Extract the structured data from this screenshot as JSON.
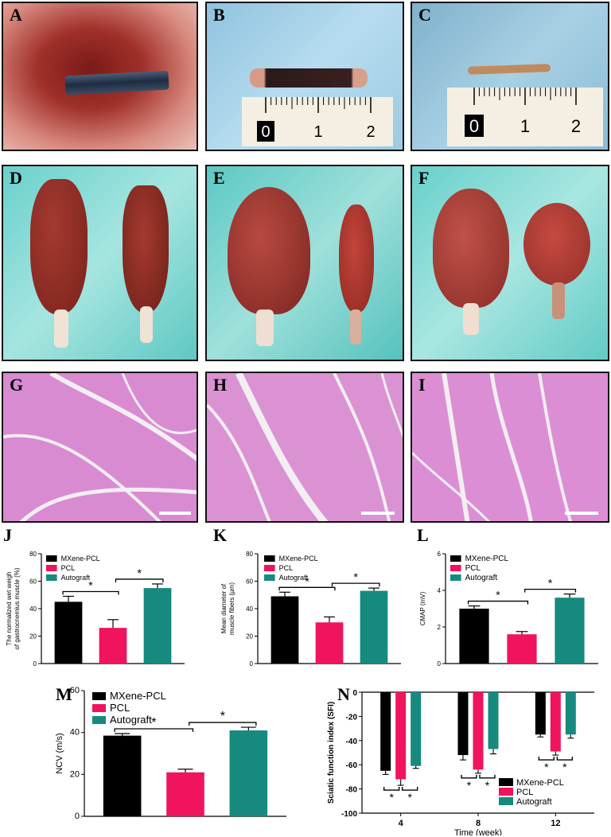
{
  "panels": {
    "A": "A",
    "B": "B",
    "C": "C",
    "D": "D",
    "E": "E",
    "F": "F",
    "G": "G",
    "H": "H",
    "I": "I",
    "J": "J",
    "K": "K",
    "L": "L",
    "M": "M",
    "N": "N"
  },
  "ruler_labels": [
    "0",
    "1",
    "2"
  ],
  "colors": {
    "mxene": "#000000",
    "pcl": "#f0135d",
    "autograft": "#178a80"
  },
  "chart_data": [
    {
      "id": "J",
      "type": "bar",
      "ylabel": "The normalized wet weigh of gastrocnemius muscle (%)",
      "ylim": [
        0,
        80
      ],
      "yticks": [
        "0",
        "20",
        "40",
        "60",
        "80"
      ],
      "categories": [
        "MXene-PCL",
        "PCL",
        "Autograft"
      ],
      "values": [
        45,
        26,
        55
      ],
      "errors": [
        4,
        6,
        3
      ],
      "legend": [
        "MXene-PCL",
        "PCL",
        "Autograft"
      ],
      "significance": [
        "*",
        "*"
      ]
    },
    {
      "id": "K",
      "type": "bar",
      "ylabel": "Mean diameter of muscle fibers (μm)",
      "ylim": [
        0,
        80
      ],
      "yticks": [
        "0",
        "20",
        "40",
        "60",
        "80"
      ],
      "categories": [
        "MXene-PCL",
        "PCL",
        "Autograft"
      ],
      "values": [
        49,
        30,
        53
      ],
      "errors": [
        3,
        4,
        2
      ],
      "legend": [
        "MXene-PCL",
        "PCL",
        "Autograft"
      ],
      "significance": [
        "*",
        "*"
      ]
    },
    {
      "id": "L",
      "type": "bar",
      "ylabel": "CMAP (mV)",
      "ylim": [
        0,
        6
      ],
      "yticks": [
        "0",
        "2",
        "4",
        "6"
      ],
      "categories": [
        "MXene-PCL",
        "PCL",
        "Autograft"
      ],
      "values": [
        3.0,
        1.6,
        3.6
      ],
      "errors": [
        0.15,
        0.15,
        0.2
      ],
      "legend": [
        "MXene-PCL",
        "PCL",
        "Autograft"
      ],
      "significance": [
        "*",
        "*"
      ]
    },
    {
      "id": "M",
      "type": "bar",
      "ylabel": "NCV (m/s)",
      "ylim": [
        0,
        60
      ],
      "yticks": [
        "0",
        "20",
        "40",
        "60"
      ],
      "categories": [
        "MXene-PCL",
        "PCL",
        "Autograft"
      ],
      "values": [
        38.5,
        21,
        41
      ],
      "errors": [
        1,
        1.5,
        1.5
      ],
      "legend": [
        "MXene-PCL",
        "PCL",
        "Autograft"
      ],
      "significance": [
        "*",
        "*"
      ]
    },
    {
      "id": "N",
      "type": "bar",
      "xlabel": "Time (week)",
      "ylabel": "Sciatic function index (SFI)",
      "ylim": [
        -100,
        0
      ],
      "yticks": [
        "-100",
        "-80",
        "-60",
        "-40",
        "-20",
        "0"
      ],
      "categories": [
        "4",
        "8",
        "12"
      ],
      "series": [
        {
          "name": "MXene-PCL",
          "values": [
            -65,
            -52,
            -35
          ],
          "errors": [
            3,
            4,
            2
          ]
        },
        {
          "name": "PCL",
          "values": [
            -72,
            -64,
            -49
          ],
          "errors": [
            5,
            3,
            3
          ]
        },
        {
          "name": "Autograft",
          "values": [
            -61,
            -47,
            -35
          ],
          "errors": [
            2,
            4,
            3
          ]
        }
      ],
      "legend": [
        "MXene-PCL",
        "PCL",
        "Autograft"
      ],
      "significance": [
        "*",
        "*",
        "*",
        "*",
        "*",
        "*"
      ]
    }
  ]
}
